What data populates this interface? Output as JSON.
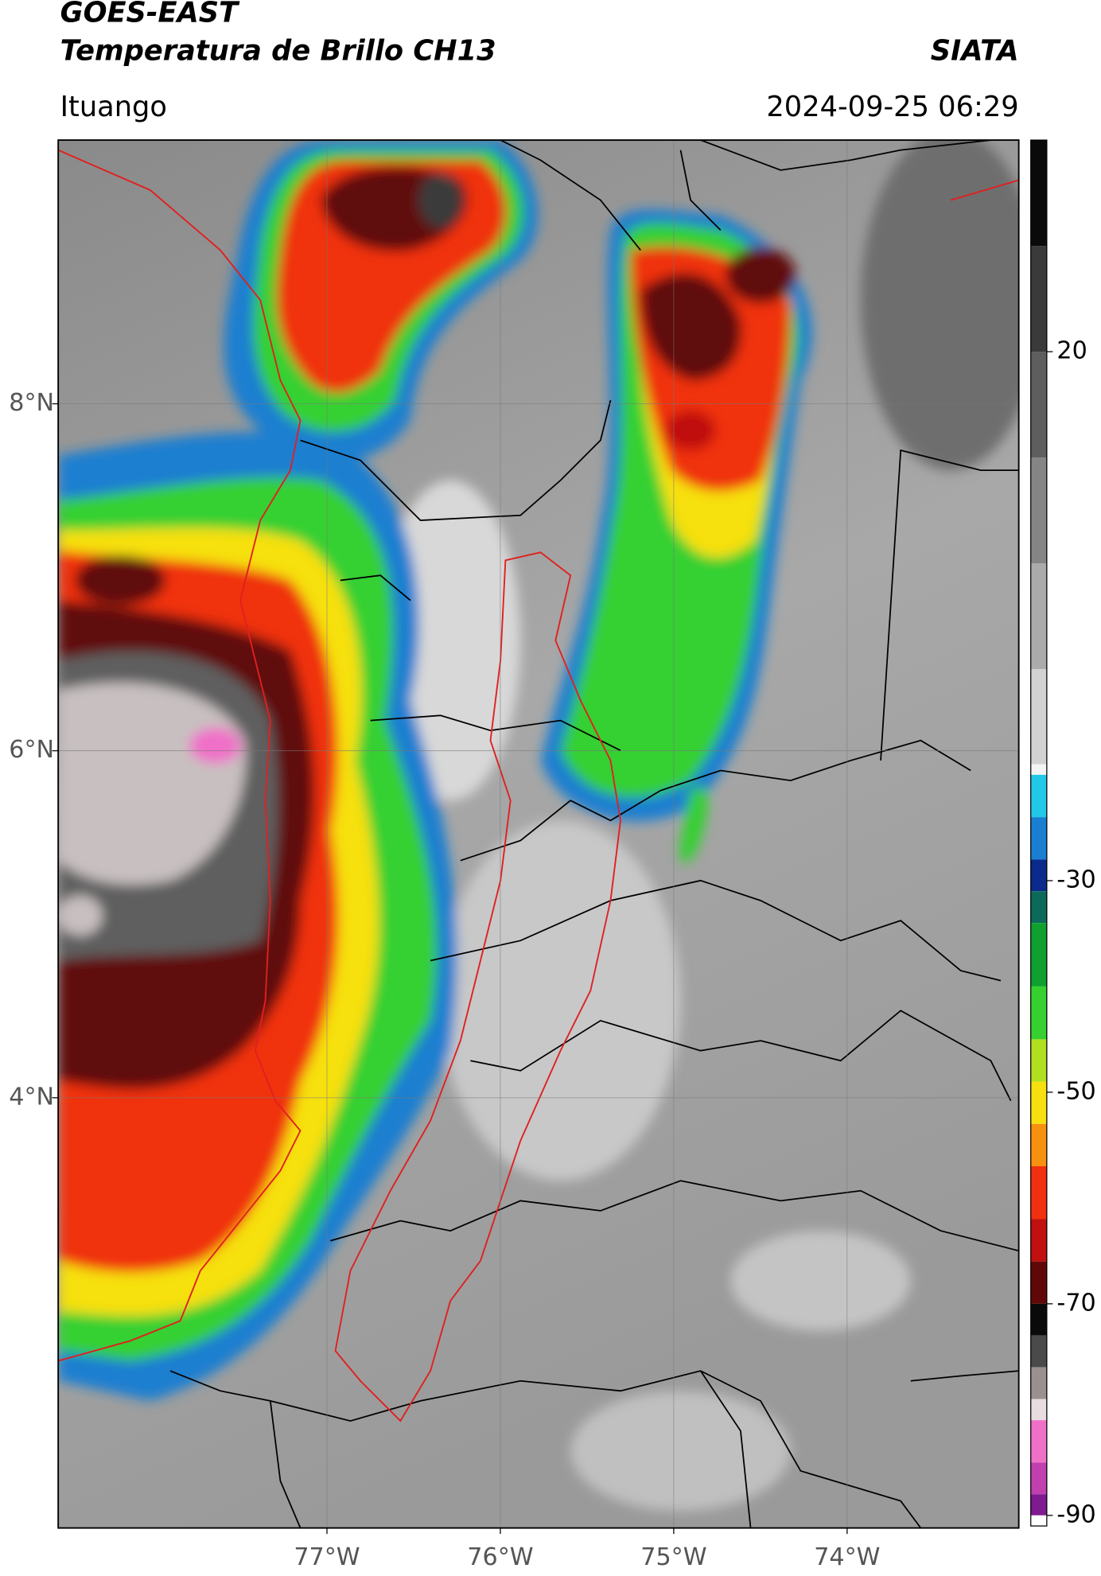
{
  "chart_data": {
    "type": "map",
    "title": [
      "GOES-EAST",
      "Temperatura de Brillo CH13"
    ],
    "source": "SIATA",
    "subtitle": "Ituango",
    "timestamp": "2024-09-25 06:29",
    "xlim": [
      -78.55,
      -73.01
    ],
    "ylim": [
      1.52,
      9.52
    ],
    "xticks": [
      {
        "value": -77,
        "label": "77°W"
      },
      {
        "value": -76,
        "label": "76°W"
      },
      {
        "value": -75,
        "label": "75°W"
      },
      {
        "value": -74,
        "label": "74°W"
      }
    ],
    "yticks": [
      {
        "value": 8,
        "label": "8°N"
      },
      {
        "value": 6,
        "label": "6°N"
      },
      {
        "value": 4,
        "label": "4°N"
      }
    ],
    "grid": true,
    "colorbar": {
      "lim": [
        -91,
        40
      ],
      "ticks": [
        20,
        -30,
        -50,
        -70,
        -90
      ],
      "stops": [
        {
          "value": 40,
          "color": "#0a0a0a"
        },
        {
          "value": 30,
          "color": "#3a3a3a"
        },
        {
          "value": 20,
          "color": "#5e5e5e"
        },
        {
          "value": 10,
          "color": "#858585"
        },
        {
          "value": 0,
          "color": "#ababab"
        },
        {
          "value": -10,
          "color": "#d2d2d2"
        },
        {
          "value": -19,
          "color": "#f4f4f4"
        },
        {
          "value": -20,
          "color": "#22c8e8"
        },
        {
          "value": -24,
          "color": "#1a7fd0"
        },
        {
          "value": -28,
          "color": "#0a2a8c"
        },
        {
          "value": -31,
          "color": "#0c6a5a"
        },
        {
          "value": -34,
          "color": "#10a030"
        },
        {
          "value": -40,
          "color": "#36d030"
        },
        {
          "value": -45,
          "color": "#b0e020"
        },
        {
          "value": -49,
          "color": "#f6e010"
        },
        {
          "value": -53,
          "color": "#f89010"
        },
        {
          "value": -57,
          "color": "#f03010"
        },
        {
          "value": -62,
          "color": "#c01010"
        },
        {
          "value": -66,
          "color": "#600808"
        },
        {
          "value": -70,
          "color": "#0a0a0a"
        },
        {
          "value": -73,
          "color": "#4a4a4a"
        },
        {
          "value": -76,
          "color": "#9a9090"
        },
        {
          "value": -79,
          "color": "#e8dce0"
        },
        {
          "value": -81,
          "color": "#f070c8"
        },
        {
          "value": -85,
          "color": "#c040b0"
        },
        {
          "value": -88,
          "color": "#801a90"
        },
        {
          "value": -90,
          "color": "#ffffff"
        }
      ]
    }
  }
}
